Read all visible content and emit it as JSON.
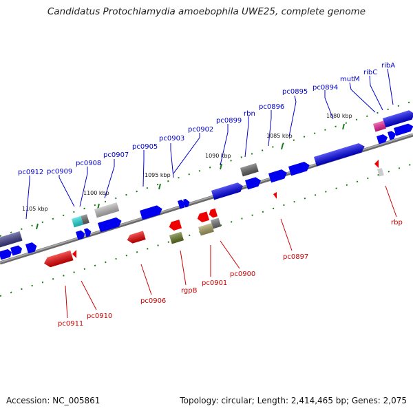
{
  "title": "Candidatus Protochlamydia amoebophila UWE25, complete genome",
  "footer": {
    "accession": "Accession: NC_005861",
    "topology": "Topology: circular; Length: 2,414,465 bp; Genes: 2,075"
  },
  "ticks": [
    {
      "kbp": 1080,
      "label": "1080 kbp"
    },
    {
      "kbp": 1085,
      "label": "1085 kbp"
    },
    {
      "kbp": 1090,
      "label": "1090 kbp"
    },
    {
      "kbp": 1095,
      "label": "1095 kbp"
    },
    {
      "kbp": 1100,
      "label": "1100 kbp"
    },
    {
      "kbp": 1105,
      "label": "1105 kbp"
    }
  ],
  "forward_genes": [
    {
      "name": "ribA"
    },
    {
      "name": "ribC"
    },
    {
      "name": "mutM"
    },
    {
      "name": "pc0894"
    },
    {
      "name": "pc0895"
    },
    {
      "name": "pc0896"
    },
    {
      "name": "rbn"
    },
    {
      "name": "pc0899"
    },
    {
      "name": "pc0902"
    },
    {
      "name": "pc0903"
    },
    {
      "name": "pc0905"
    },
    {
      "name": "pc0907"
    },
    {
      "name": "pc0908"
    },
    {
      "name": "pc0909"
    },
    {
      "name": "pc0912"
    }
  ],
  "reverse_genes": [
    {
      "name": "rbp"
    },
    {
      "name": "pc0897"
    },
    {
      "name": "pc0900"
    },
    {
      "name": "pc0901"
    },
    {
      "name": "rgpB"
    },
    {
      "name": "pc0906"
    },
    {
      "name": "pc0910"
    },
    {
      "name": "pc0911"
    }
  ],
  "colors": {
    "forward_label": "#0000cc",
    "reverse_label": "#cc0000",
    "forward_gene": "#0000ee",
    "reverse_gene": "#ee0000",
    "backbone": "#808080",
    "tick": "#1a7a1a"
  }
}
